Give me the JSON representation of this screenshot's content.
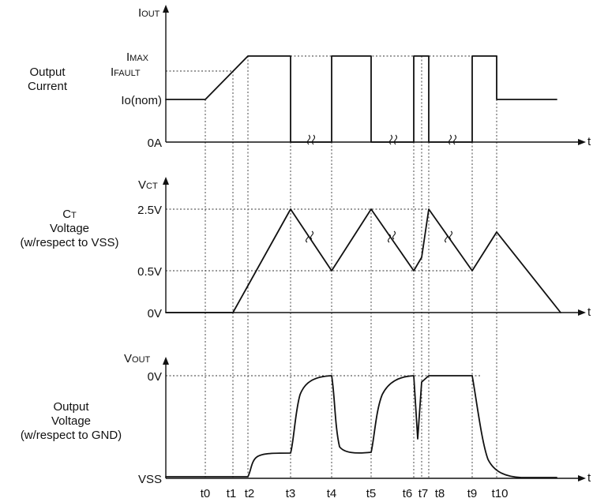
{
  "panels": {
    "current": {
      "title_lines": [
        "Output",
        "Current"
      ],
      "axis_label": "I",
      "axis_label_sub": "OUT",
      "levels": [
        {
          "main": "I",
          "sub": "MAX"
        },
        {
          "main": "I",
          "sub": "FAULT"
        },
        {
          "main": "Io(nom)",
          "sub": ""
        },
        {
          "main": "0A",
          "sub": ""
        }
      ]
    },
    "ct": {
      "title_lines": [
        "C",
        "Voltage",
        "(w/respect to VSS)"
      ],
      "title_sub": "T",
      "axis_label": "V",
      "axis_label_sub": "CT",
      "levels": [
        {
          "main": "2.5V",
          "sub": ""
        },
        {
          "main": "0.5V",
          "sub": ""
        },
        {
          "main": "0V",
          "sub": ""
        }
      ]
    },
    "vout": {
      "title_lines": [
        "Output",
        "Voltage",
        "(w/respect to GND)"
      ],
      "axis_label": "V",
      "axis_label_sub": "OUT",
      "levels": [
        {
          "main": "0V",
          "sub": ""
        },
        {
          "main": "VSS",
          "sub": ""
        }
      ]
    }
  },
  "time_axis_label": "t",
  "time_markers": [
    "t0",
    "t1",
    "t2",
    "t3",
    "t4",
    "t5",
    "t6",
    "t7",
    "t8",
    "t9",
    "t10"
  ]
}
